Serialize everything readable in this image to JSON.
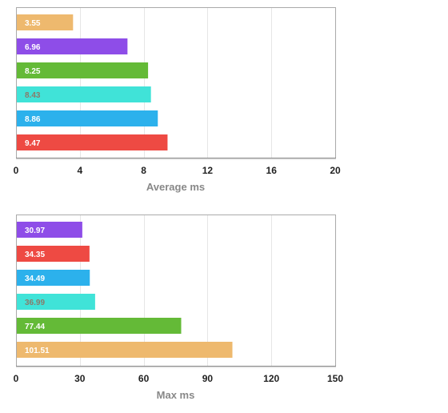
{
  "chart_data": [
    {
      "type": "bar",
      "orientation": "horizontal",
      "xlabel": "Average ms",
      "xlim": [
        0,
        20
      ],
      "ticks": [
        0,
        4,
        8,
        12,
        16,
        20
      ],
      "grid": true,
      "bars": [
        {
          "value": 3.55,
          "label": "3.55",
          "color": "#eeb96e",
          "label_color": "#ffffff"
        },
        {
          "value": 6.96,
          "label": "6.96",
          "color": "#8e4de8",
          "label_color": "#ffffff"
        },
        {
          "value": 8.25,
          "label": "8.25",
          "color": "#64ba37",
          "label_color": "#ffffff"
        },
        {
          "value": 8.43,
          "label": "8.43",
          "color": "#40e3d8",
          "label_color": "#8a7a6a"
        },
        {
          "value": 8.86,
          "label": "8.86",
          "color": "#2cb1ec",
          "label_color": "#ffffff"
        },
        {
          "value": 9.47,
          "label": "9.47",
          "color": "#ee4a43",
          "label_color": "#ffffff"
        }
      ]
    },
    {
      "type": "bar",
      "orientation": "horizontal",
      "xlabel": "Max ms",
      "xlim": [
        0,
        150
      ],
      "ticks": [
        0,
        30,
        60,
        90,
        120,
        150
      ],
      "grid": true,
      "bars": [
        {
          "value": 30.97,
          "label": "30.97",
          "color": "#8e4de8",
          "label_color": "#ffffff"
        },
        {
          "value": 34.35,
          "label": "34.35",
          "color": "#ee4a43",
          "label_color": "#ffffff"
        },
        {
          "value": 34.49,
          "label": "34.49",
          "color": "#2cb1ec",
          "label_color": "#ffffff"
        },
        {
          "value": 36.99,
          "label": "36.99",
          "color": "#40e3d8",
          "label_color": "#8a7a6a"
        },
        {
          "value": 77.44,
          "label": "77.44",
          "color": "#64ba37",
          "label_color": "#ffffff"
        },
        {
          "value": 101.51,
          "label": "101.51",
          "color": "#eeb96e",
          "label_color": "#ffffff"
        }
      ]
    }
  ]
}
